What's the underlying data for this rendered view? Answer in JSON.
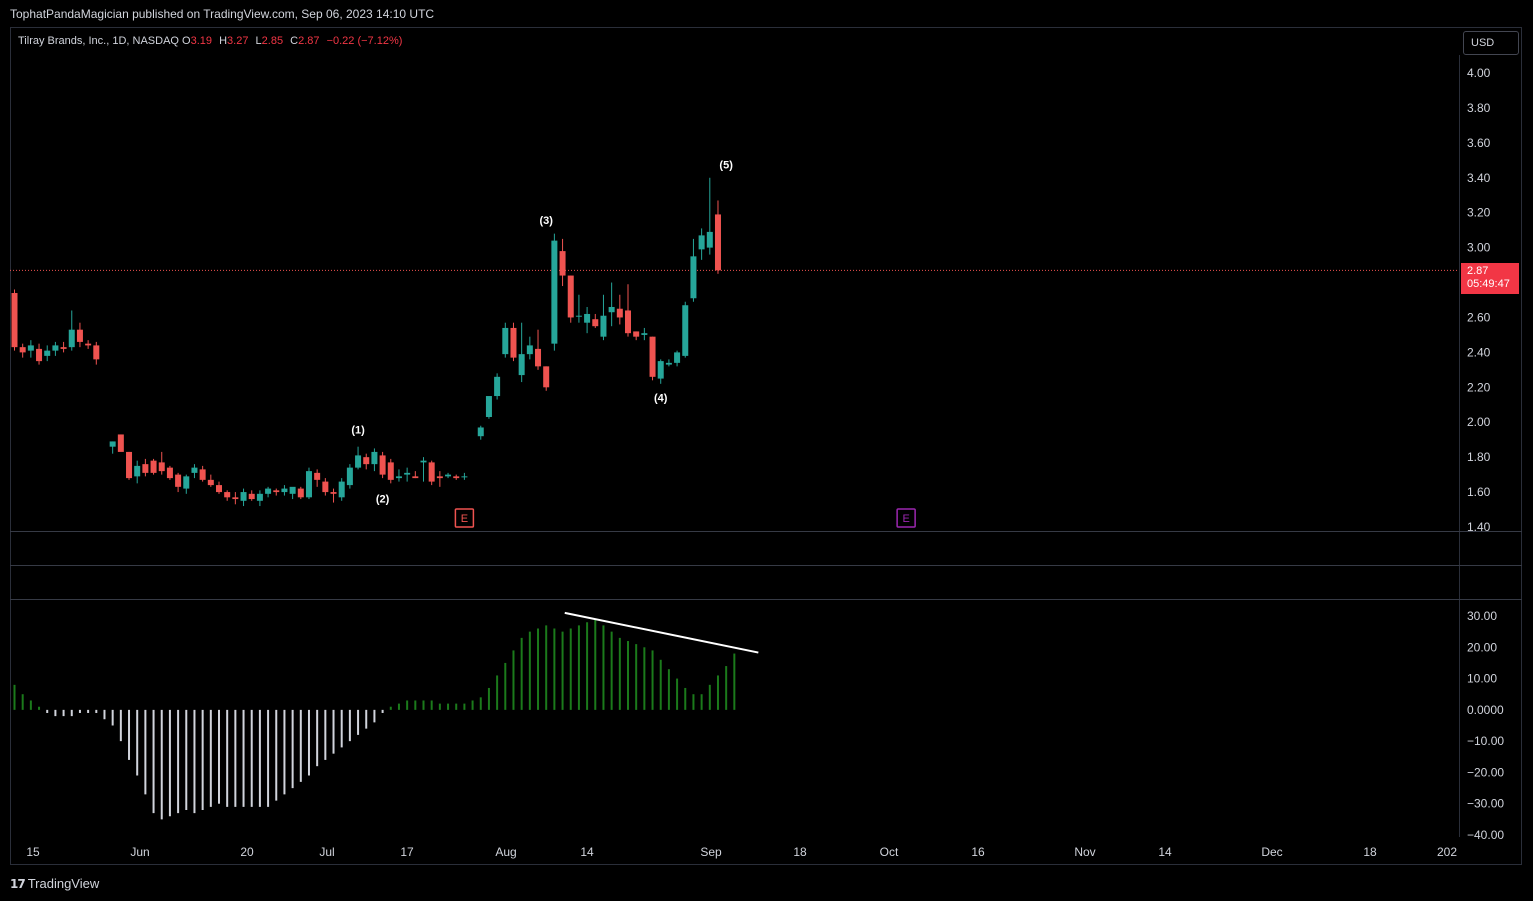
{
  "header": {
    "published": "TophatPandaMagician published on TradingView.com, Sep 06, 2023 14:10 UTC"
  },
  "legend": {
    "symbol": "Tilray Brands, Inc., 1D, NASDAQ",
    "open_label": "O",
    "open": "3.19",
    "high_label": "H",
    "high": "3.27",
    "low_label": "L",
    "low": "2.85",
    "close_label": "C",
    "close": "2.87",
    "change": "−0.22 (−7.12%)"
  },
  "currency": "USD",
  "price_tag": {
    "price": "2.87",
    "countdown": "05:49:47"
  },
  "footer": {
    "brand": "TradingView",
    "logo_glyph": "17"
  },
  "colors": {
    "up": "#26a69a",
    "down": "#ef5350",
    "osc_pos": "#1b7a1b",
    "osc_neg": "#d1d4dc",
    "background": "#000000"
  },
  "chart_data": [
    {
      "type": "candlestick",
      "title": "",
      "ylim": [
        1.38,
        4.1
      ],
      "y_ticks": [
        "4.00",
        "3.80",
        "3.60",
        "3.40",
        "3.20",
        "3.00",
        "2.80",
        "2.60",
        "2.40",
        "2.20",
        "2.00",
        "1.80",
        "1.60",
        "1.40"
      ],
      "x_ticks": [
        "15",
        "Jun",
        "20",
        "Jul",
        "17",
        "Aug",
        "14",
        "Sep",
        "18",
        "Oct",
        "16",
        "Nov",
        "14",
        "Dec",
        "18",
        "202"
      ],
      "last_price_line": 2.87,
      "candles": [
        {
          "o": 2.74,
          "h": 2.76,
          "l": 2.41,
          "c": 2.43
        },
        {
          "o": 2.43,
          "h": 2.45,
          "l": 2.37,
          "c": 2.4
        },
        {
          "o": 2.41,
          "h": 2.47,
          "l": 2.37,
          "c": 2.44
        },
        {
          "o": 2.42,
          "h": 2.45,
          "l": 2.33,
          "c": 2.35
        },
        {
          "o": 2.38,
          "h": 2.44,
          "l": 2.35,
          "c": 2.41
        },
        {
          "o": 2.41,
          "h": 2.46,
          "l": 2.38,
          "c": 2.44
        },
        {
          "o": 2.43,
          "h": 2.46,
          "l": 2.4,
          "c": 2.42
        },
        {
          "o": 2.43,
          "h": 2.64,
          "l": 2.41,
          "c": 2.53
        },
        {
          "o": 2.53,
          "h": 2.57,
          "l": 2.43,
          "c": 2.46
        },
        {
          "o": 2.45,
          "h": 2.47,
          "l": 2.42,
          "c": 2.44
        },
        {
          "o": 2.44,
          "h": 2.46,
          "l": 2.33,
          "c": 2.36
        },
        null,
        {
          "o": 1.86,
          "h": 1.89,
          "l": 1.82,
          "c": 1.89
        },
        {
          "o": 1.93,
          "h": 1.93,
          "l": 1.84,
          "c": 1.83
        },
        {
          "o": 1.83,
          "h": 1.83,
          "l": 1.67,
          "c": 1.68
        },
        {
          "o": 1.69,
          "h": 1.78,
          "l": 1.65,
          "c": 1.75
        },
        {
          "o": 1.76,
          "h": 1.79,
          "l": 1.69,
          "c": 1.71
        },
        {
          "o": 1.78,
          "h": 1.79,
          "l": 1.7,
          "c": 1.71
        },
        {
          "o": 1.77,
          "h": 1.83,
          "l": 1.7,
          "c": 1.72
        },
        {
          "o": 1.74,
          "h": 1.75,
          "l": 1.67,
          "c": 1.68
        },
        {
          "o": 1.7,
          "h": 1.71,
          "l": 1.6,
          "c": 1.63
        },
        {
          "o": 1.62,
          "h": 1.7,
          "l": 1.59,
          "c": 1.69
        },
        {
          "o": 1.71,
          "h": 1.76,
          "l": 1.68,
          "c": 1.74
        },
        {
          "o": 1.73,
          "h": 1.75,
          "l": 1.66,
          "c": 1.67
        },
        {
          "o": 1.67,
          "h": 1.7,
          "l": 1.63,
          "c": 1.64
        },
        {
          "o": 1.64,
          "h": 1.66,
          "l": 1.59,
          "c": 1.6
        },
        {
          "o": 1.6,
          "h": 1.61,
          "l": 1.55,
          "c": 1.57
        },
        {
          "o": 1.57,
          "h": 1.6,
          "l": 1.53,
          "c": 1.56
        },
        {
          "o": 1.55,
          "h": 1.62,
          "l": 1.52,
          "c": 1.6
        },
        {
          "o": 1.59,
          "h": 1.61,
          "l": 1.55,
          "c": 1.56
        },
        {
          "o": 1.55,
          "h": 1.61,
          "l": 1.52,
          "c": 1.59
        },
        {
          "o": 1.59,
          "h": 1.63,
          "l": 1.57,
          "c": 1.62
        },
        {
          "o": 1.61,
          "h": 1.62,
          "l": 1.58,
          "c": 1.6
        },
        {
          "o": 1.6,
          "h": 1.64,
          "l": 1.58,
          "c": 1.62
        },
        {
          "o": 1.59,
          "h": 1.62,
          "l": 1.56,
          "c": 1.63
        },
        {
          "o": 1.62,
          "h": 1.63,
          "l": 1.56,
          "c": 1.57
        },
        {
          "o": 1.57,
          "h": 1.74,
          "l": 1.56,
          "c": 1.72
        },
        {
          "o": 1.71,
          "h": 1.73,
          "l": 1.63,
          "c": 1.67
        },
        {
          "o": 1.66,
          "h": 1.68,
          "l": 1.58,
          "c": 1.6
        },
        {
          "o": 1.6,
          "h": 1.62,
          "l": 1.54,
          "c": 1.59
        },
        {
          "o": 1.57,
          "h": 1.68,
          "l": 1.55,
          "c": 1.66
        },
        {
          "o": 1.64,
          "h": 1.76,
          "l": 1.62,
          "c": 1.74
        },
        {
          "o": 1.74,
          "h": 1.86,
          "l": 1.73,
          "c": 1.81
        },
        {
          "o": 1.8,
          "h": 1.82,
          "l": 1.73,
          "c": 1.76
        },
        {
          "o": 1.76,
          "h": 1.85,
          "l": 1.72,
          "c": 1.83
        },
        {
          "o": 1.81,
          "h": 1.83,
          "l": 1.68,
          "c": 1.7
        },
        {
          "o": 1.77,
          "h": 1.79,
          "l": 1.65,
          "c": 1.67
        },
        {
          "o": 1.68,
          "h": 1.73,
          "l": 1.66,
          "c": 1.69
        },
        {
          "o": 1.7,
          "h": 1.74,
          "l": 1.66,
          "c": 1.71
        },
        {
          "o": 1.69,
          "h": 1.72,
          "l": 1.68,
          "c": 1.68
        },
        {
          "o": 1.77,
          "h": 1.8,
          "l": 1.66,
          "c": 1.78
        },
        {
          "o": 1.77,
          "h": 1.78,
          "l": 1.64,
          "c": 1.66
        },
        {
          "o": 1.69,
          "h": 1.72,
          "l": 1.63,
          "c": 1.68
        },
        {
          "o": 1.69,
          "h": 1.71,
          "l": 1.68,
          "c": 1.7
        },
        {
          "o": 1.69,
          "h": 1.7,
          "l": 1.67,
          "c": 1.68
        },
        {
          "o": 1.69,
          "h": 1.71,
          "l": 1.67,
          "c": 1.69
        },
        null,
        {
          "o": 1.92,
          "h": 1.98,
          "l": 1.9,
          "c": 1.97
        },
        {
          "o": 2.03,
          "h": 2.13,
          "l": 2.02,
          "c": 2.15
        },
        {
          "o": 2.15,
          "h": 2.28,
          "l": 2.13,
          "c": 2.26
        },
        {
          "o": 2.39,
          "h": 2.57,
          "l": 2.37,
          "c": 2.54
        },
        {
          "o": 2.54,
          "h": 2.57,
          "l": 2.35,
          "c": 2.37
        },
        {
          "o": 2.27,
          "h": 2.57,
          "l": 2.23,
          "c": 2.39
        },
        {
          "o": 2.39,
          "h": 2.49,
          "l": 2.36,
          "c": 2.44
        },
        {
          "o": 2.42,
          "h": 2.53,
          "l": 2.3,
          "c": 2.32
        },
        {
          "o": 2.32,
          "h": 2.32,
          "l": 2.18,
          "c": 2.2
        },
        {
          "o": 2.45,
          "h": 3.08,
          "l": 2.41,
          "c": 3.04
        },
        {
          "o": 2.98,
          "h": 3.05,
          "l": 2.78,
          "c": 2.84
        },
        {
          "o": 2.84,
          "h": 2.84,
          "l": 2.57,
          "c": 2.6
        },
        {
          "o": 2.61,
          "h": 2.73,
          "l": 2.57,
          "c": 2.61
        },
        {
          "o": 2.57,
          "h": 2.66,
          "l": 2.51,
          "c": 2.62
        },
        {
          "o": 2.59,
          "h": 2.62,
          "l": 2.54,
          "c": 2.55
        },
        {
          "o": 2.49,
          "h": 2.73,
          "l": 2.47,
          "c": 2.61
        },
        {
          "o": 2.63,
          "h": 2.8,
          "l": 2.55,
          "c": 2.66
        },
        {
          "o": 2.65,
          "h": 2.73,
          "l": 2.56,
          "c": 2.6
        },
        {
          "o": 2.64,
          "h": 2.79,
          "l": 2.49,
          "c": 2.51
        },
        {
          "o": 2.52,
          "h": 2.52,
          "l": 2.47,
          "c": 2.49
        },
        {
          "o": 2.5,
          "h": 2.54,
          "l": 2.47,
          "c": 2.51
        },
        {
          "o": 2.49,
          "h": 2.49,
          "l": 2.24,
          "c": 2.26
        },
        {
          "o": 2.25,
          "h": 2.36,
          "l": 2.22,
          "c": 2.35
        },
        {
          "o": 2.33,
          "h": 2.36,
          "l": 2.32,
          "c": 2.34
        },
        {
          "o": 2.34,
          "h": 2.41,
          "l": 2.32,
          "c": 2.4
        },
        {
          "o": 2.38,
          "h": 2.69,
          "l": 2.37,
          "c": 2.67
        },
        {
          "o": 2.71,
          "h": 3.05,
          "l": 2.69,
          "c": 2.95
        },
        {
          "o": 2.99,
          "h": 3.11,
          "l": 2.93,
          "c": 3.07
        },
        {
          "o": 3.0,
          "h": 3.4,
          "l": 2.96,
          "c": 3.09
        },
        {
          "o": 3.19,
          "h": 3.27,
          "l": 2.85,
          "c": 2.87
        }
      ],
      "wave_labels": [
        {
          "label": "(1)",
          "bar": 42,
          "price": 1.9,
          "pos": "above"
        },
        {
          "label": "(2)",
          "bar": 45,
          "price": 1.62,
          "pos": "below"
        },
        {
          "label": "(3)",
          "bar": 65,
          "price": 3.1,
          "pos": "above"
        },
        {
          "label": "(4)",
          "bar": 79,
          "price": 2.2,
          "pos": "below"
        },
        {
          "label": "(5)",
          "bar": 87,
          "price": 3.42,
          "pos": "above"
        }
      ],
      "earnings_markers": [
        {
          "label": "E",
          "bar": 55,
          "color": "#ef5350"
        },
        {
          "label": "E",
          "bar": 109,
          "color": "#9c27b0"
        }
      ]
    },
    {
      "type": "histogram",
      "title": "",
      "ylim": [
        -41,
        35
      ],
      "y_ticks": [
        "30.00",
        "20.00",
        "10.00",
        "0.0000",
        "−10.00",
        "−20.00",
        "−30.00",
        "−40.00"
      ],
      "values": [
        8,
        5,
        3,
        1,
        -1,
        -2,
        -2,
        -2,
        -1,
        -1,
        -1,
        -3,
        -5,
        -10,
        -16,
        -21,
        -27,
        -33,
        -35,
        -34,
        -33,
        -32,
        -33,
        -32,
        -31,
        -30,
        -31,
        -31,
        -31,
        -31,
        -31,
        -31,
        -29,
        -27,
        -25,
        -23,
        -21,
        -18,
        -16,
        -14,
        -12,
        -10,
        -8,
        -6,
        -4,
        -1,
        1,
        2,
        3,
        3,
        3,
        3,
        2,
        2,
        2,
        2,
        3,
        4,
        7,
        11,
        15,
        19,
        23,
        25,
        26,
        27,
        26,
        25,
        26,
        27,
        28,
        29,
        27,
        25,
        23,
        22,
        21,
        20,
        19,
        16,
        13,
        10,
        7,
        5,
        5,
        8,
        11,
        14,
        18
      ],
      "trendline": {
        "from": {
          "bar": 68,
          "value": 31
        },
        "to": {
          "bar": 88,
          "value": 18
        }
      }
    }
  ]
}
